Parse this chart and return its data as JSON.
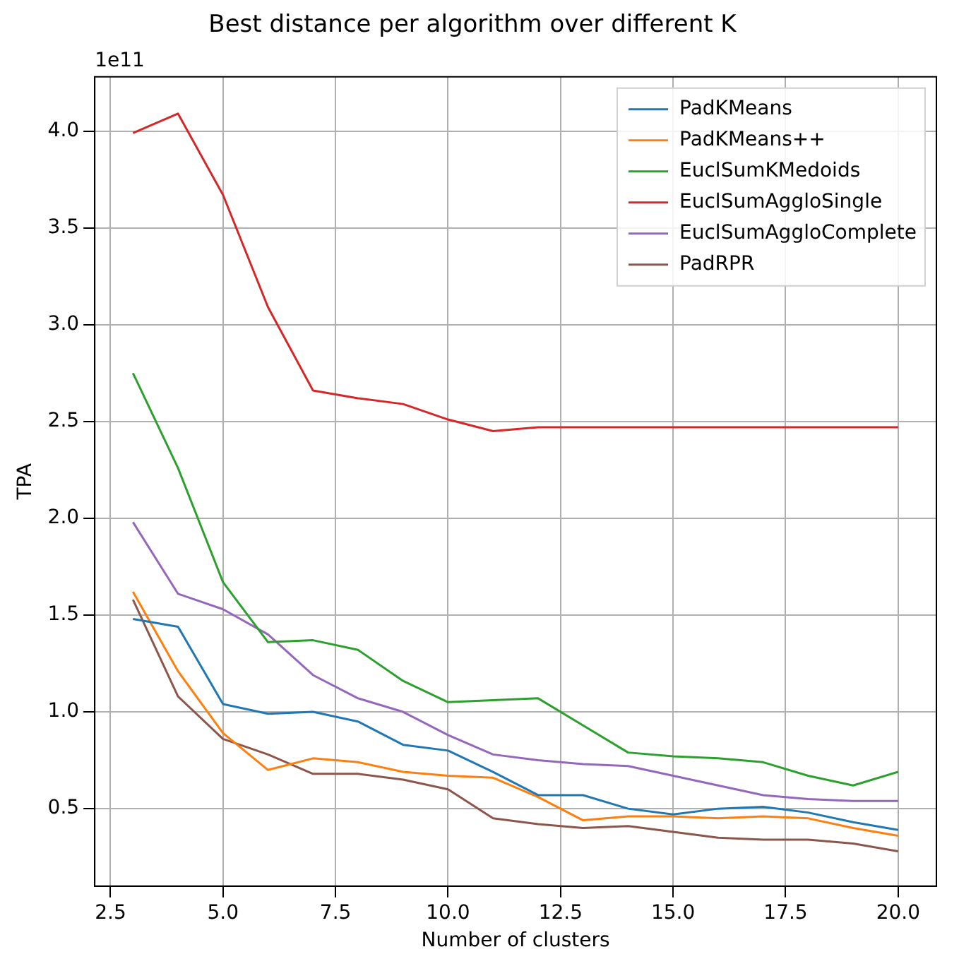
{
  "chart_data": {
    "type": "line",
    "title": "Best distance per algorithm over different K",
    "xlabel": "Number of clusters",
    "ylabel": "TPA",
    "annotations": [
      "1e11"
    ],
    "x": [
      3,
      4,
      5,
      6,
      7,
      8,
      9,
      10,
      11,
      12,
      13,
      14,
      15,
      16,
      17,
      18,
      19,
      20
    ],
    "series": [
      {
        "name": "PadKMeans",
        "color": "#1f77b4",
        "values": [
          1.48,
          1.44,
          1.04,
          0.99,
          1.0,
          0.95,
          0.83,
          0.8,
          0.69,
          0.57,
          0.57,
          0.5,
          0.47,
          0.5,
          0.51,
          0.48,
          0.43,
          0.39
        ]
      },
      {
        "name": "PadKMeans++",
        "color": "#ff7f0e",
        "values": [
          1.62,
          1.21,
          0.89,
          0.7,
          0.76,
          0.74,
          0.69,
          0.67,
          0.66,
          0.56,
          0.44,
          0.46,
          0.46,
          0.45,
          0.46,
          0.45,
          0.4,
          0.36
        ]
      },
      {
        "name": "EuclSumKMedoids",
        "color": "#2ca02c",
        "values": [
          2.75,
          2.26,
          1.67,
          1.36,
          1.37,
          1.32,
          1.16,
          1.05,
          1.06,
          1.07,
          0.93,
          0.79,
          0.77,
          0.76,
          0.74,
          0.67,
          0.62,
          0.69
        ]
      },
      {
        "name": "EuclSumAggloSingle",
        "color": "#d62728",
        "values": [
          3.99,
          4.09,
          3.67,
          3.09,
          2.66,
          2.62,
          2.59,
          2.51,
          2.45,
          2.47,
          2.47,
          2.47,
          2.47,
          2.47,
          2.47,
          2.47,
          2.47,
          2.47
        ]
      },
      {
        "name": "EuclSumAggloComplete",
        "color": "#9467bd",
        "values": [
          1.98,
          1.61,
          1.53,
          1.4,
          1.19,
          1.07,
          1.0,
          0.88,
          0.78,
          0.75,
          0.73,
          0.72,
          0.67,
          0.62,
          0.57,
          0.55,
          0.54,
          0.54
        ]
      },
      {
        "name": "PadRPR",
        "color": "#8c564b",
        "values": [
          1.58,
          1.08,
          0.86,
          0.78,
          0.68,
          0.68,
          0.65,
          0.6,
          0.45,
          0.42,
          0.4,
          0.41,
          0.38,
          0.35,
          0.34,
          0.34,
          0.32,
          0.28
        ]
      }
    ],
    "xlim": [
      2.15,
      20.85
    ],
    "xticks": [
      2.5,
      {
        "value": 5,
        "label": "5.0"
      },
      7.5,
      {
        "value": 10,
        "label": "10.0"
      },
      12.5,
      {
        "value": 15,
        "label": "15.0"
      },
      17.5,
      {
        "value": 20,
        "label": "20.0"
      }
    ],
    "ylim": [
      0.1,
      4.28
    ],
    "yticks": [
      0.5,
      {
        "value": 1,
        "label": "1.0"
      },
      1.5,
      {
        "value": 2,
        "label": "2.0"
      },
      2.5,
      {
        "value": 3,
        "label": "3.0"
      },
      3.5,
      {
        "value": 4,
        "label": "4.0"
      }
    ],
    "grid": true,
    "legend": "top right",
    "marker": "none",
    "line_style": "solid"
  }
}
